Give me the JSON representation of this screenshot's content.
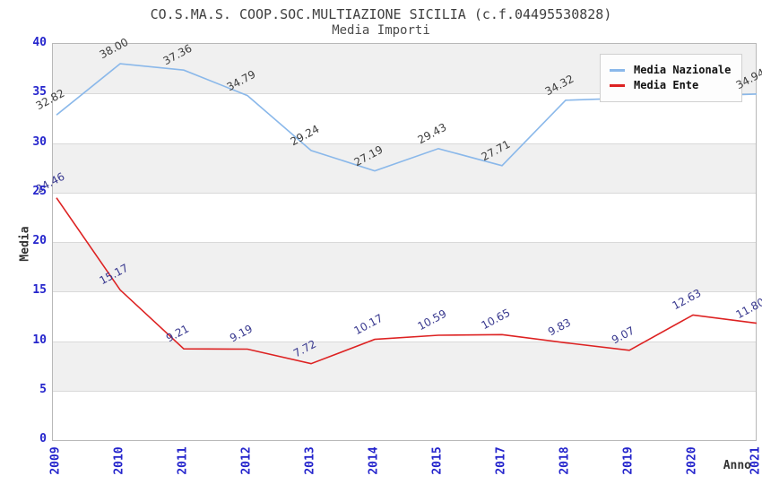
{
  "header": {
    "title": "CO.S.MA.S. COOP.SOC.MULTIAZIONE SICILIA (c.f.04495530828)",
    "subtitle": "Media Importi"
  },
  "axes": {
    "y_label": "Media",
    "x_label": "Anno",
    "y_ticks": [
      0,
      5,
      10,
      15,
      20,
      25,
      30,
      35,
      40
    ],
    "tick_color": "#2424cc"
  },
  "legend": {
    "items": [
      {
        "label": "Media Nazionale",
        "color": "#8ab8ea"
      },
      {
        "label": "Media Ente",
        "color": "#dd2222"
      }
    ]
  },
  "chart_data": {
    "type": "line",
    "title": "CO.S.MA.S. COOP.SOC.MULTIAZIONE SICILIA (c.f.04495530828)",
    "subtitle": "Media Importi",
    "xlabel": "Anno",
    "ylabel": "Media",
    "ylim": [
      0,
      40
    ],
    "grid": "horizontal-with-alternating-bands",
    "band_color": "#f0f0f0",
    "legend_position": "top-right-inside",
    "categories": [
      "2009",
      "2010",
      "2011",
      "2012",
      "2013",
      "2014",
      "2015",
      "2017",
      "2018",
      "2019",
      "2020",
      "2021"
    ],
    "series": [
      {
        "name": "Media Nazionale",
        "color": "#8ab8ea",
        "label_color": "#3d3d3d",
        "values": [
          32.82,
          38.0,
          37.36,
          34.79,
          29.24,
          27.19,
          29.43,
          27.71,
          34.32,
          34.53,
          34.73,
          34.94
        ],
        "labels": [
          "32.82",
          "38.00",
          "37.36",
          "34.79",
          "29.24",
          "27.19",
          "29.43",
          "27.71",
          "34.32",
          null,
          null,
          "34.94"
        ]
      },
      {
        "name": "Media Ente",
        "color": "#dd2222",
        "label_color": "#39398f",
        "values": [
          24.46,
          15.17,
          9.21,
          9.19,
          7.72,
          10.17,
          10.59,
          10.65,
          9.83,
          9.07,
          12.63,
          11.8
        ],
        "labels": [
          "24.46",
          "15.17",
          "9.21",
          "9.19",
          "7.72",
          "10.17",
          "10.59",
          "10.65",
          "9.83",
          "9.07",
          "12.63",
          "11.80"
        ]
      }
    ]
  }
}
